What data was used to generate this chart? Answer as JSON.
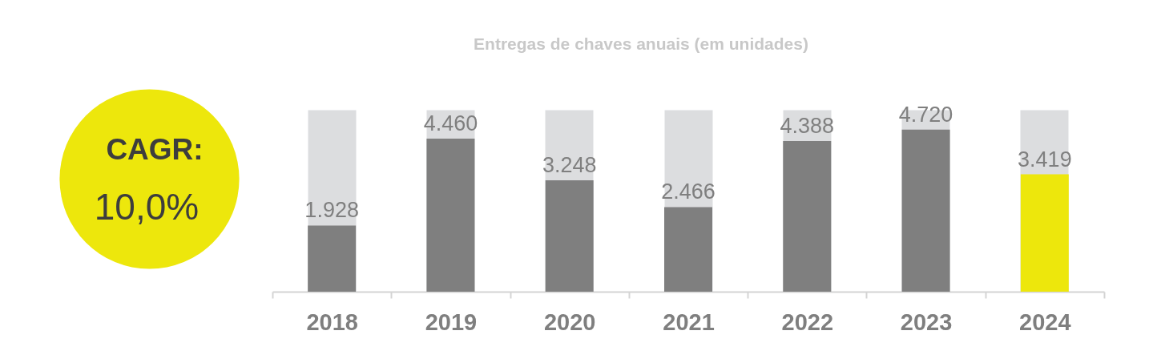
{
  "chart_data": {
    "type": "bar",
    "title": "Entregas de chaves anuais (em unidades)",
    "categories": [
      "2018",
      "2019",
      "2020",
      "2021",
      "2022",
      "2023",
      "2024"
    ],
    "values": [
      1928,
      4460,
      3248,
      2466,
      4388,
      4720,
      3419
    ],
    "colors": [
      "#7f7f7f",
      "#7f7f7f",
      "#7f7f7f",
      "#7f7f7f",
      "#7f7f7f",
      "#7f7f7f",
      "#ede70c"
    ],
    "value_labels": [
      "1.928",
      "4.460",
      "3.248",
      "2.466",
      "4.388",
      "4.720",
      "3.419"
    ],
    "ylim": [
      0,
      5300
    ],
    "grid": "x",
    "tick_labels": "x",
    "annotations": [
      "CAGR:",
      "10,0%"
    ]
  }
}
